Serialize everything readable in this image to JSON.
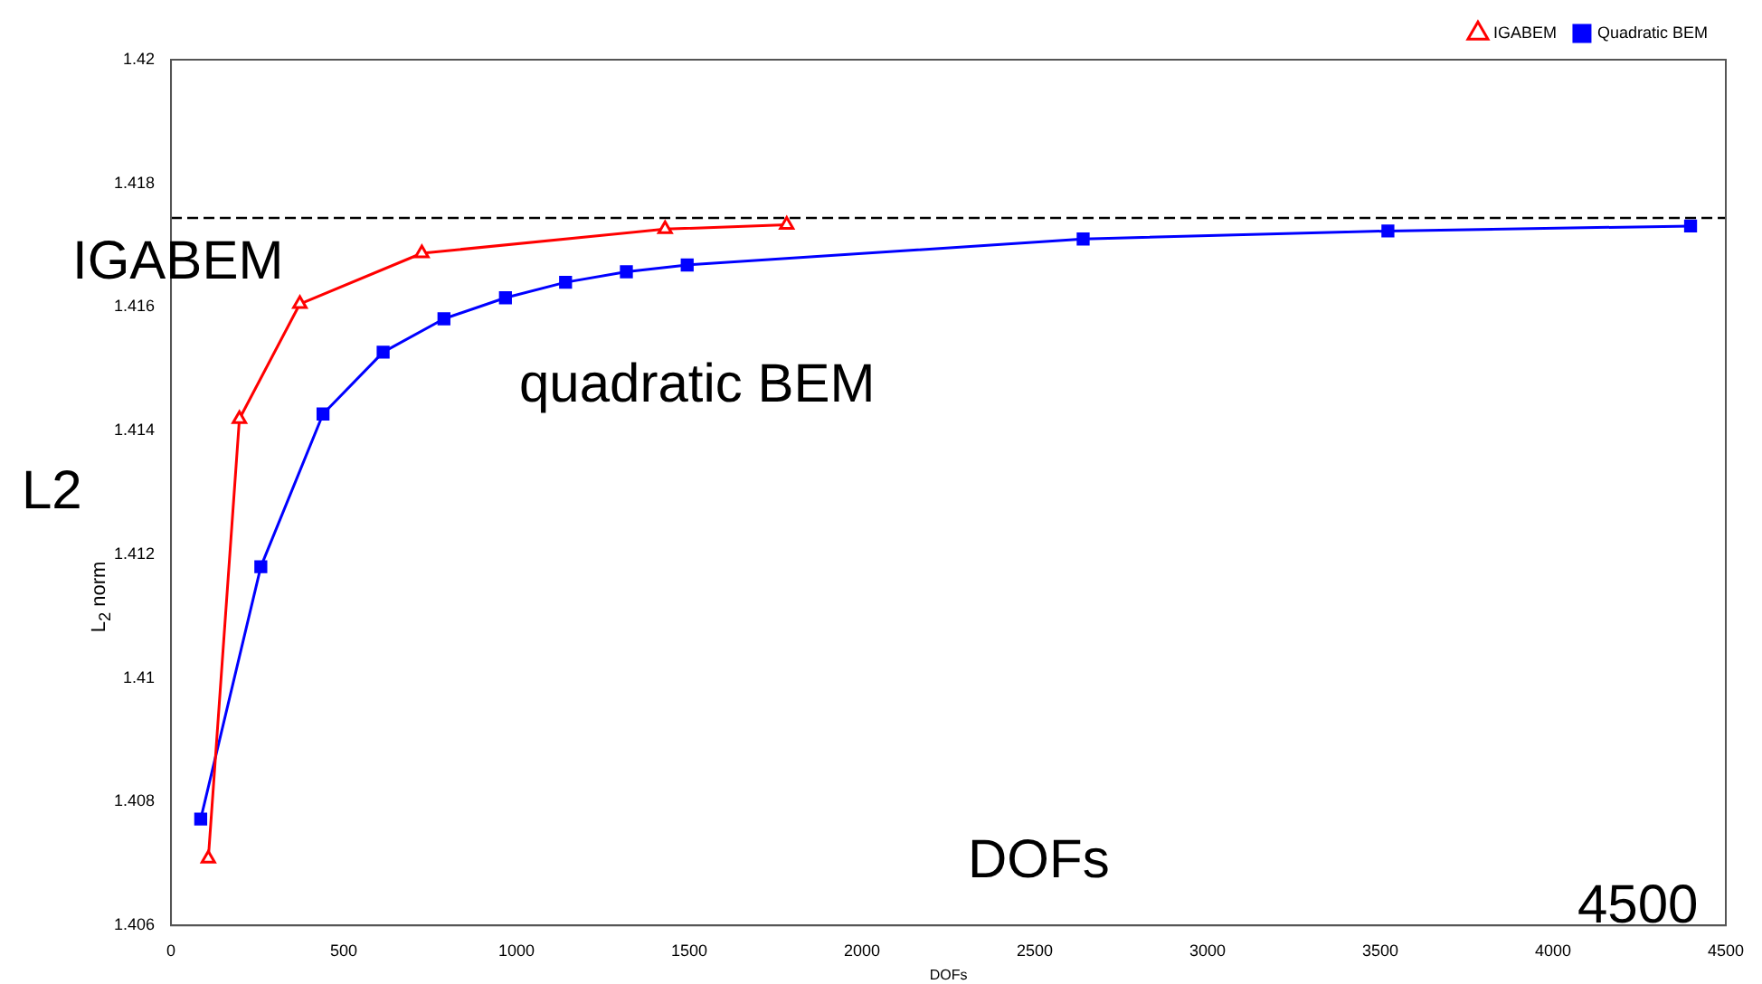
{
  "chart_data": {
    "type": "line",
    "xlabel": "DOFs",
    "ylabel": "L$_{2}$ norm",
    "annotations": [
      "IGABEM",
      "quadratic BEM",
      "L2",
      "DOFs",
      "4500"
    ],
    "series": [
      {
        "name": "IGABEM",
        "color": "#ff0000",
        "marker": "triangle",
        "x": [
          108,
          198,
          373,
          726,
          1430,
          1782
        ],
        "values": [
          1.40708,
          1.41419,
          1.41605,
          1.41687,
          1.41726,
          1.41733
        ]
      },
      {
        "name": "Quadratic BEM",
        "color": "#0000ff",
        "marker": "square",
        "x": [
          86,
          260,
          440,
          614,
          790,
          968,
          1142,
          1318,
          1494,
          2640,
          3522,
          4398
        ],
        "values": [
          1.40772,
          1.4118,
          1.41427,
          1.41527,
          1.41581,
          1.41615,
          1.4164,
          1.41657,
          1.41668,
          1.4171,
          1.41723,
          1.41731
        ]
      }
    ],
    "ref_lines": [
      {
        "axis": "y",
        "value": 1.41744,
        "color": "#000000",
        "line_style": "dashed"
      }
    ],
    "xlim": [
      0,
      4500
    ],
    "xticks": [
      0,
      500,
      1000,
      1500,
      2000,
      2500,
      3000,
      3500,
      4000,
      4500
    ],
    "ylim": [
      1.406,
      1.42
    ],
    "yticks": [
      1.406,
      1.408,
      1.41,
      1.412,
      1.414,
      1.416,
      1.418,
      1.42
    ],
    "grid": false,
    "legend": "top right",
    "line_style": "solid"
  }
}
